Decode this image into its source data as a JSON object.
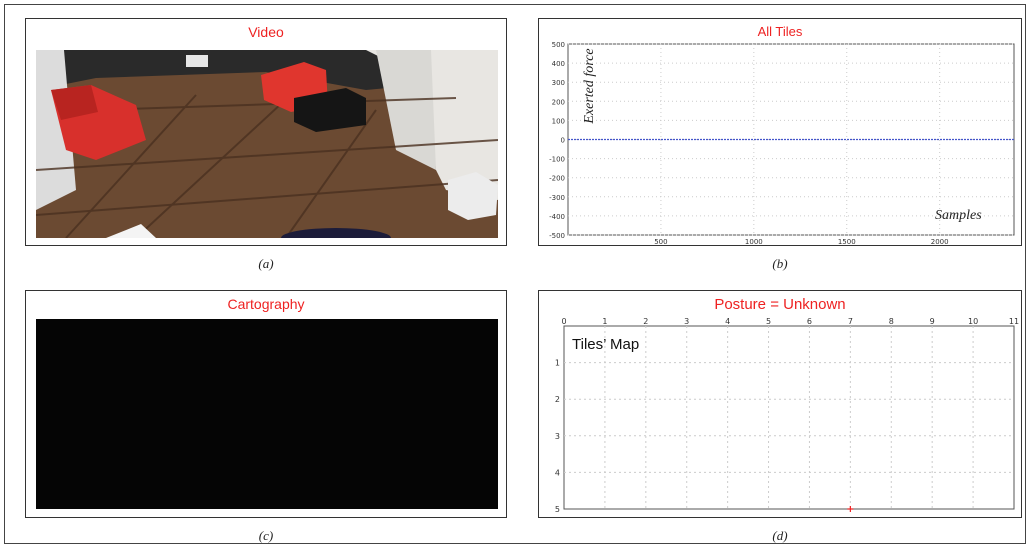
{
  "panels": {
    "a": {
      "title": "Video",
      "caption": "(a)"
    },
    "b": {
      "title": "All Tiles",
      "caption": "(b)",
      "ylabel": "Exerted force",
      "xlabel": "Samples"
    },
    "c": {
      "title": "Cartography",
      "caption": "(c)"
    },
    "d": {
      "title": "Posture = Unknown",
      "caption": "(d)",
      "annotation": "Tiles’ Map"
    }
  },
  "chart_data": [
    {
      "type": "line",
      "title": "All Tiles",
      "xlabel": "Samples",
      "ylabel": "Exerted force",
      "xlim": [
        0,
        2400
      ],
      "ylim": [
        -500,
        500
      ],
      "xticks": [
        500,
        1000,
        1500,
        2000
      ],
      "yticks": [
        500,
        400,
        300,
        200,
        100,
        0,
        -100,
        -200,
        -300,
        -400,
        -500
      ],
      "series": [
        {
          "x": [
            0,
            2400
          ],
          "y": [
            0,
            0
          ],
          "color": "#4455cc"
        }
      ],
      "grid": true
    },
    {
      "type": "scatter",
      "title": "Posture = Unknown",
      "annotation": "Tiles’ Map",
      "xlim": [
        0,
        11
      ],
      "ylim": [
        0,
        5
      ],
      "xticks": [
        0,
        1,
        2,
        3,
        4,
        5,
        6,
        7,
        8,
        9,
        10,
        11
      ],
      "yticks": [
        1,
        2,
        3,
        4,
        5
      ],
      "y_inverted": true,
      "x_axis_position": "top",
      "points": [
        {
          "x": 7,
          "y": 5,
          "color": "#ee2222"
        }
      ],
      "grid": true
    }
  ]
}
